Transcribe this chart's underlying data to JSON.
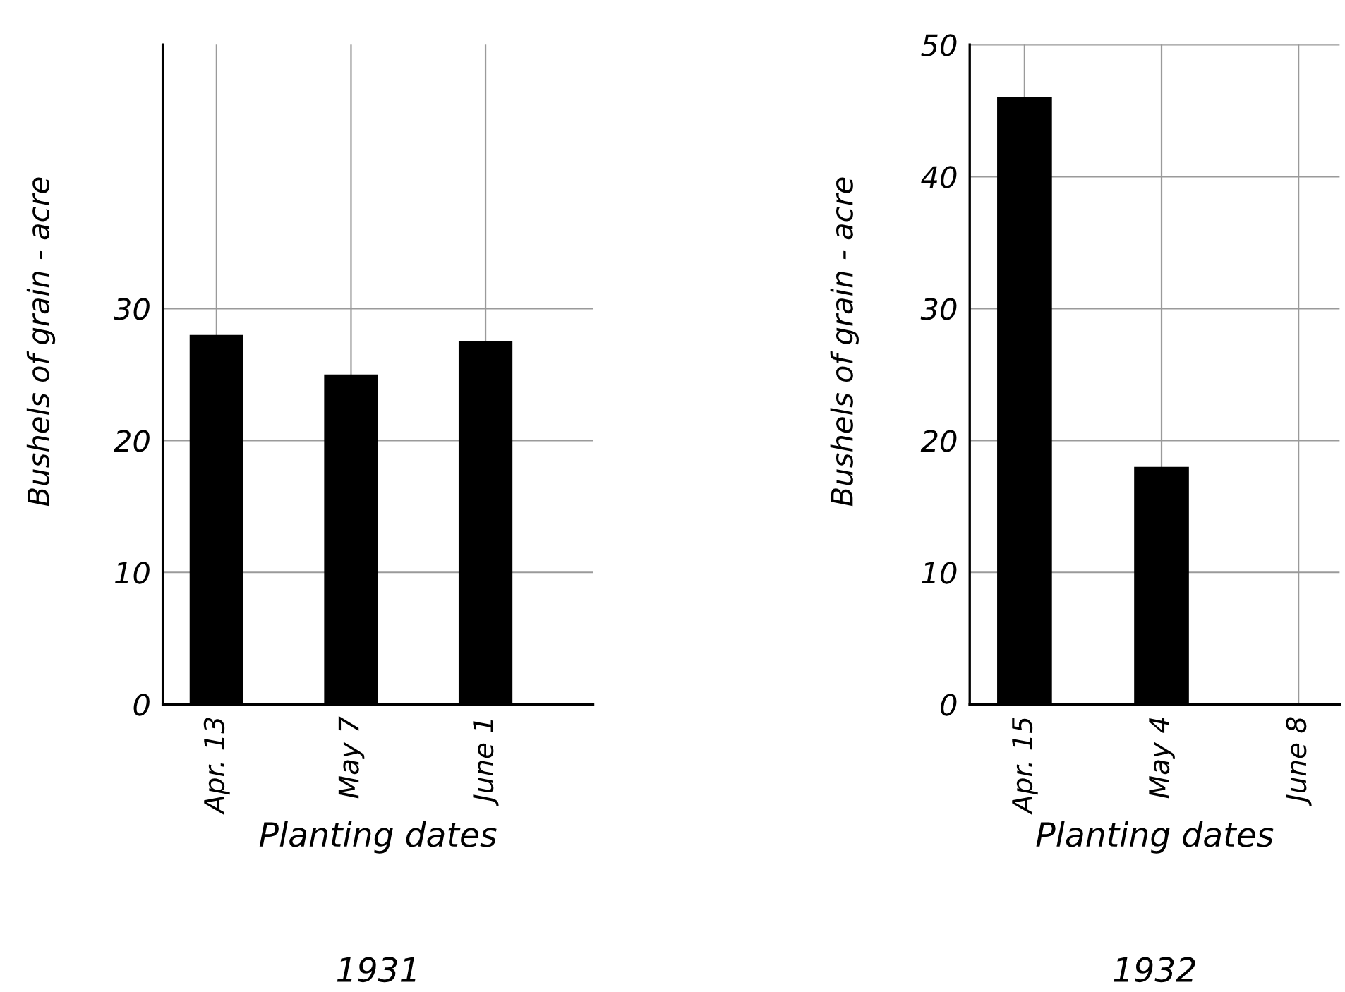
{
  "chart_data": [
    {
      "type": "bar",
      "title": "1931",
      "xlabel": "Planting dates",
      "ylabel": "Bushels of grain - acre",
      "categories": [
        "Apr. 13",
        "May 7",
        "June 1"
      ],
      "values": [
        28,
        25,
        27.5
      ],
      "color": "#000000",
      "ylim": [
        0,
        50
      ],
      "yticks": [
        0,
        10,
        20,
        30
      ],
      "grid": true
    },
    {
      "type": "bar",
      "title": "1932",
      "xlabel": "Planting dates",
      "ylabel": "Bushels of grain - acre",
      "categories": [
        "Apr. 15",
        "May 4",
        "June 8"
      ],
      "values": [
        46,
        18,
        0
      ],
      "color": "#000000",
      "ylim": [
        0,
        50
      ],
      "yticks": [
        0,
        10,
        20,
        30,
        40,
        50
      ],
      "grid": true
    }
  ]
}
